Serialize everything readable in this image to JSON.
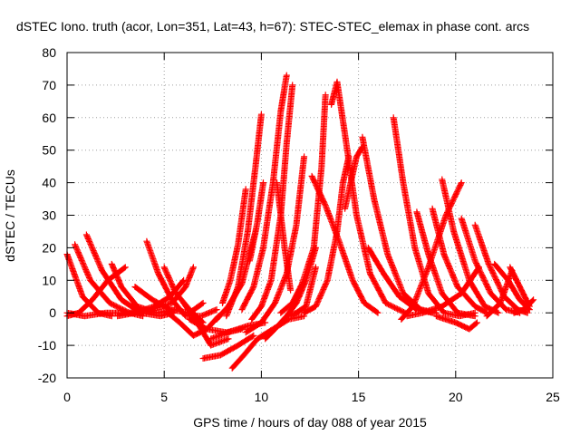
{
  "chart_data": {
    "type": "scatter",
    "title": "dSTEC Iono. truth (acor, Lon=351, Lat=43, h=67): STEC-STEC_elemax in phase cont. arcs",
    "xlabel": "GPS time / hours of day 088 of year 2015",
    "ylabel": "dSTEC  / TECUs",
    "xlim": [
      0,
      25
    ],
    "ylim": [
      -20,
      80
    ],
    "xticks": [
      0,
      5,
      10,
      15,
      20,
      25
    ],
    "yticks": [
      -20,
      -10,
      0,
      10,
      20,
      30,
      40,
      50,
      60,
      70,
      80
    ],
    "grid": true,
    "marker": "+",
    "color": "#ff0000",
    "series": [
      {
        "x": [
          0.0,
          0.8,
          1.6,
          2.3
        ],
        "y": [
          18,
          5,
          0,
          -1
        ]
      },
      {
        "x": [
          0.0,
          0.6,
          1.3,
          2.1,
          3.0
        ],
        "y": [
          -1,
          0,
          4,
          10,
          14
        ]
      },
      {
        "x": [
          0.4,
          1.2,
          2.2,
          3.2,
          3.9
        ],
        "y": [
          21,
          10,
          3,
          0,
          -1
        ]
      },
      {
        "x": [
          0.0,
          0.9,
          2.0,
          3.2,
          4.3,
          5.4,
          6.1,
          6.5
        ],
        "y": [
          0,
          -1,
          0,
          0,
          1,
          3,
          8,
          14
        ]
      },
      {
        "x": [
          1.0,
          1.8,
          2.8,
          3.8,
          4.8,
          5.5
        ],
        "y": [
          24,
          13,
          4,
          0,
          -1,
          0
        ]
      },
      {
        "x": [
          2.3,
          2.8,
          3.6,
          4.6,
          5.6
        ],
        "y": [
          15,
          8,
          2,
          0,
          1
        ]
      },
      {
        "x": [
          2.6,
          3.5,
          4.5,
          5.3,
          6.0
        ],
        "y": [
          -1,
          0,
          2,
          5,
          10
        ]
      },
      {
        "x": [
          3.5,
          4.4,
          5.3,
          6.3,
          7.0
        ],
        "y": [
          8,
          4,
          1,
          0,
          3
        ]
      },
      {
        "x": [
          4.1,
          4.7,
          5.4,
          6.1,
          6.9,
          7.7
        ],
        "y": [
          22,
          12,
          4,
          -1,
          -1,
          1
        ]
      },
      {
        "x": [
          5.0,
          5.6,
          6.3,
          7.0
        ],
        "y": [
          14,
          6,
          1,
          -3
        ]
      },
      {
        "x": [
          5.2,
          5.8,
          6.5,
          7.2,
          7.8
        ],
        "y": [
          0,
          -3,
          -7,
          -5,
          -1
        ]
      },
      {
        "x": [
          6.0,
          6.6,
          7.4,
          8.3
        ],
        "y": [
          3,
          -2,
          -10,
          -8
        ]
      },
      {
        "x": [
          6.3,
          7.2,
          8.2,
          9.0
        ],
        "y": [
          -2,
          -5,
          -6,
          -5
        ]
      },
      {
        "x": [
          7.0,
          7.9,
          8.8,
          9.6
        ],
        "y": [
          -14,
          -13,
          -10,
          -7
        ]
      },
      {
        "x": [
          7.4,
          8.3,
          9.3,
          10.2
        ],
        "y": [
          -8,
          -6,
          -4,
          -3
        ]
      },
      {
        "x": [
          7.7,
          8.3,
          9.0,
          9.7
        ],
        "y": [
          -2,
          2,
          9,
          25
        ]
      },
      {
        "x": [
          8.0,
          8.4,
          8.8,
          9.2
        ],
        "y": [
          3,
          10,
          21,
          38
        ]
      },
      {
        "x": [
          8.5,
          9.1,
          9.8,
          10.6,
          11.4,
          12.2
        ],
        "y": [
          -17,
          -13,
          -8,
          -5,
          -2,
          -1
        ]
      },
      {
        "x": [
          8.2,
          8.8,
          9.3,
          9.7,
          10.0
        ],
        "y": [
          -1,
          8,
          25,
          45,
          61
        ]
      },
      {
        "x": [
          9.0,
          9.6,
          10.1,
          10.6,
          11.0,
          11.3
        ],
        "y": [
          1,
          8,
          20,
          40,
          62,
          73
        ]
      },
      {
        "x": [
          9.2,
          10.0,
          10.7,
          11.3,
          11.8,
          12.2
        ],
        "y": [
          -6,
          -3,
          3,
          12,
          27,
          48
        ]
      },
      {
        "x": [
          9.4,
          9.8,
          10.1
        ],
        "y": [
          16,
          28,
          40
        ]
      },
      {
        "x": [
          9.5,
          10.0,
          10.5,
          11.0,
          11.3,
          11.6
        ],
        "y": [
          -2,
          2,
          10,
          30,
          52,
          70
        ]
      },
      {
        "x": [
          10.2,
          10.7,
          11.3,
          11.8,
          12.3,
          12.8
        ],
        "y": [
          -8,
          -5,
          -1,
          3,
          10,
          20
        ]
      },
      {
        "x": [
          10.8,
          11.2,
          11.5
        ],
        "y": [
          40,
          20,
          7
        ]
      },
      {
        "x": [
          11.0,
          11.6,
          12.1,
          12.7,
          13.1,
          13.3
        ],
        "y": [
          0,
          3,
          9,
          20,
          45,
          67
        ]
      },
      {
        "x": [
          11.4,
          11.8,
          12.3,
          12.8
        ],
        "y": [
          -1,
          0,
          2,
          14
        ]
      },
      {
        "x": [
          12.6,
          13.3,
          14.0,
          14.7,
          15.3,
          16.0
        ],
        "y": [
          42,
          33,
          22,
          10,
          3,
          0
        ]
      },
      {
        "x": [
          12.2,
          12.8,
          13.4,
          13.9,
          14.2,
          14.5
        ],
        "y": [
          0,
          2,
          10,
          25,
          40,
          48
        ]
      },
      {
        "x": [
          13.6,
          13.9,
          14.3,
          14.9,
          15.6,
          16.4,
          17.4
        ],
        "y": [
          64,
          71,
          55,
          30,
          12,
          3,
          0
        ]
      },
      {
        "x": [
          14.3,
          14.6,
          14.9,
          15.2
        ],
        "y": [
          32,
          40,
          48,
          51
        ]
      },
      {
        "x": [
          15.2,
          15.8,
          16.5,
          17.3,
          18.2,
          19.0
        ],
        "y": [
          54,
          35,
          18,
          6,
          1,
          0
        ]
      },
      {
        "x": [
          15.5,
          16.3,
          17.1,
          18.0,
          18.8
        ],
        "y": [
          20,
          12,
          5,
          1,
          0
        ]
      },
      {
        "x": [
          16.8,
          17.3,
          17.9,
          18.6,
          19.4,
          20.2,
          21.0
        ],
        "y": [
          60,
          40,
          20,
          6,
          0,
          -1,
          0
        ]
      },
      {
        "x": [
          17.2,
          17.8,
          18.6,
          19.5,
          20.3
        ],
        "y": [
          -2,
          2,
          14,
          30,
          40
        ]
      },
      {
        "x": [
          18.0,
          18.6,
          19.3,
          20.1,
          21.0
        ],
        "y": [
          31,
          18,
          6,
          0,
          -1
        ]
      },
      {
        "x": [
          18.8,
          19.4,
          20.1,
          21.0,
          21.6
        ],
        "y": [
          32,
          18,
          8,
          2,
          0
        ]
      },
      {
        "x": [
          17.5,
          18.3,
          19.3,
          20.3,
          21.2
        ],
        "y": [
          -1,
          0,
          2,
          6,
          14
        ]
      },
      {
        "x": [
          19.3,
          19.9,
          20.7,
          21.5,
          22.2
        ],
        "y": [
          41,
          25,
          10,
          2,
          0
        ]
      },
      {
        "x": [
          19.0,
          20.0,
          20.7,
          21.1
        ],
        "y": [
          -1,
          -3,
          -5,
          -3
        ]
      },
      {
        "x": [
          20.3,
          21.0,
          21.8,
          22.6,
          23.3
        ],
        "y": [
          29,
          16,
          6,
          1,
          0
        ]
      },
      {
        "x": [
          21.0,
          21.7,
          22.5,
          23.2,
          23.7
        ],
        "y": [
          27,
          15,
          5,
          1,
          0
        ]
      },
      {
        "x": [
          21.6,
          22.3,
          22.9
        ],
        "y": [
          -1,
          3,
          13
        ]
      },
      {
        "x": [
          22.0,
          22.7,
          23.3,
          23.8
        ],
        "y": [
          15,
          10,
          4,
          1
        ]
      },
      {
        "x": [
          22.8,
          23.3,
          23.8
        ],
        "y": [
          14,
          8,
          2
        ]
      },
      {
        "x": [
          23.0,
          23.5,
          24.0
        ],
        "y": [
          0,
          1,
          4
        ]
      }
    ]
  }
}
